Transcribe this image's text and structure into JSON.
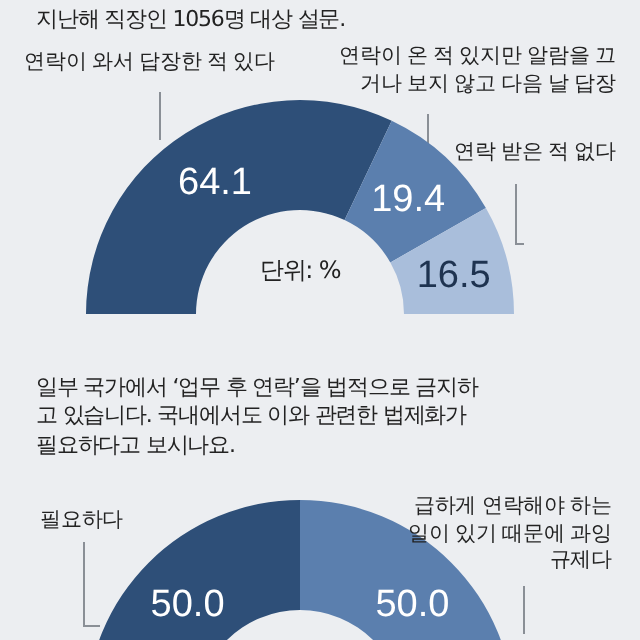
{
  "chart_data": [
    {
      "type": "donut",
      "subtitle": "지난해 직장인 1056명 대상 설문.",
      "categories": [
        "연락이 와서 답장한 적 있다",
        "연락이 온 적 있지만 알람을 끄거나 보지 않고 다음 날 답장",
        "연락 받은 적 없다"
      ],
      "values": [
        64.1,
        19.4,
        16.5
      ],
      "value_labels": [
        "64.1",
        "19.4",
        "16.5"
      ],
      "colors": [
        "#2e4f78",
        "#5b7fae",
        "#a9bedb"
      ],
      "annotations": [
        "단위: %"
      ]
    },
    {
      "type": "donut",
      "title": "일부 국가에서 ‘업무 후 연락’을 법적으로 금지하고 있습니다. 국내에서도 이와 관련한 법제화가 필요하다고 보시나요.",
      "categories": [
        "필요하다",
        "급하게 연락해야 하는 일이 있기 때문에 과잉 규제다"
      ],
      "values": [
        50.0,
        50.0
      ],
      "value_labels": [
        "50.0",
        "50.0"
      ],
      "colors": [
        "#2e4f78",
        "#5b7fae"
      ]
    }
  ]
}
